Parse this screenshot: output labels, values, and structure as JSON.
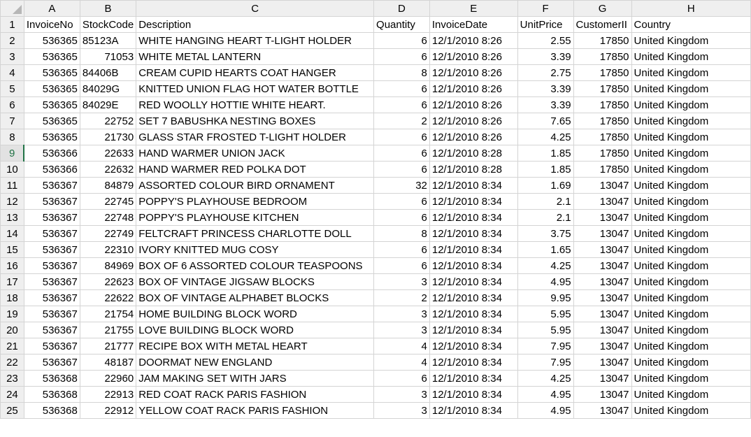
{
  "spreadsheet": {
    "active_row": "9",
    "column_letters": [
      "A",
      "B",
      "C",
      "D",
      "E",
      "F",
      "G",
      "H"
    ],
    "column_align": [
      "right",
      "right",
      "left",
      "right",
      "left",
      "right",
      "right",
      "left"
    ],
    "rows": [
      {
        "row": "1",
        "cells": [
          "InvoiceNo",
          "StockCode",
          "Description",
          "Quantity",
          "InvoiceDate",
          "UnitPrice",
          "CustomerII",
          "Country"
        ],
        "align": [
          "left",
          "left",
          "left",
          "left",
          "left",
          "left",
          "left",
          "left"
        ]
      },
      {
        "row": "2",
        "cells": [
          "536365",
          "85123A",
          "WHITE HANGING HEART T-LIGHT HOLDER",
          "6",
          "12/1/2010 8:26",
          "2.55",
          "17850",
          "United Kingdom"
        ],
        "align": [
          "right",
          "left",
          "left",
          "right",
          "left",
          "right",
          "right",
          "left"
        ]
      },
      {
        "row": "3",
        "cells": [
          "536365",
          "71053",
          "WHITE METAL LANTERN",
          "6",
          "12/1/2010 8:26",
          "3.39",
          "17850",
          "United Kingdom"
        ]
      },
      {
        "row": "4",
        "cells": [
          "536365",
          "84406B",
          "CREAM CUPID HEARTS COAT HANGER",
          "8",
          "12/1/2010 8:26",
          "2.75",
          "17850",
          "United Kingdom"
        ],
        "align": [
          "right",
          "left",
          "left",
          "right",
          "left",
          "right",
          "right",
          "left"
        ]
      },
      {
        "row": "5",
        "cells": [
          "536365",
          "84029G",
          "KNITTED UNION FLAG HOT WATER BOTTLE",
          "6",
          "12/1/2010 8:26",
          "3.39",
          "17850",
          "United Kingdom"
        ],
        "align": [
          "right",
          "left",
          "left",
          "right",
          "left",
          "right",
          "right",
          "left"
        ]
      },
      {
        "row": "6",
        "cells": [
          "536365",
          "84029E",
          "RED WOOLLY HOTTIE WHITE HEART.",
          "6",
          "12/1/2010 8:26",
          "3.39",
          "17850",
          "United Kingdom"
        ],
        "align": [
          "right",
          "left",
          "left",
          "right",
          "left",
          "right",
          "right",
          "left"
        ]
      },
      {
        "row": "7",
        "cells": [
          "536365",
          "22752",
          "SET 7 BABUSHKA NESTING BOXES",
          "2",
          "12/1/2010 8:26",
          "7.65",
          "17850",
          "United Kingdom"
        ]
      },
      {
        "row": "8",
        "cells": [
          "536365",
          "21730",
          "GLASS STAR FROSTED T-LIGHT HOLDER",
          "6",
          "12/1/2010 8:26",
          "4.25",
          "17850",
          "United Kingdom"
        ]
      },
      {
        "row": "9",
        "cells": [
          "536366",
          "22633",
          "HAND WARMER UNION JACK",
          "6",
          "12/1/2010 8:28",
          "1.85",
          "17850",
          "United Kingdom"
        ]
      },
      {
        "row": "10",
        "cells": [
          "536366",
          "22632",
          "HAND WARMER RED POLKA DOT",
          "6",
          "12/1/2010 8:28",
          "1.85",
          "17850",
          "United Kingdom"
        ]
      },
      {
        "row": "11",
        "cells": [
          "536367",
          "84879",
          "ASSORTED COLOUR BIRD ORNAMENT",
          "32",
          "12/1/2010 8:34",
          "1.69",
          "13047",
          "United Kingdom"
        ]
      },
      {
        "row": "12",
        "cells": [
          "536367",
          "22745",
          "POPPY'S PLAYHOUSE BEDROOM",
          "6",
          "12/1/2010 8:34",
          "2.1",
          "13047",
          "United Kingdom"
        ]
      },
      {
        "row": "13",
        "cells": [
          "536367",
          "22748",
          "POPPY'S PLAYHOUSE KITCHEN",
          "6",
          "12/1/2010 8:34",
          "2.1",
          "13047",
          "United Kingdom"
        ]
      },
      {
        "row": "14",
        "cells": [
          "536367",
          "22749",
          "FELTCRAFT PRINCESS CHARLOTTE DOLL",
          "8",
          "12/1/2010 8:34",
          "3.75",
          "13047",
          "United Kingdom"
        ]
      },
      {
        "row": "15",
        "cells": [
          "536367",
          "22310",
          "IVORY KNITTED MUG COSY",
          "6",
          "12/1/2010 8:34",
          "1.65",
          "13047",
          "United Kingdom"
        ]
      },
      {
        "row": "16",
        "cells": [
          "536367",
          "84969",
          "BOX OF 6 ASSORTED COLOUR TEASPOONS",
          "6",
          "12/1/2010 8:34",
          "4.25",
          "13047",
          "United Kingdom"
        ]
      },
      {
        "row": "17",
        "cells": [
          "536367",
          "22623",
          "BOX OF VINTAGE JIGSAW BLOCKS",
          "3",
          "12/1/2010 8:34",
          "4.95",
          "13047",
          "United Kingdom"
        ]
      },
      {
        "row": "18",
        "cells": [
          "536367",
          "22622",
          "BOX OF VINTAGE ALPHABET BLOCKS",
          "2",
          "12/1/2010 8:34",
          "9.95",
          "13047",
          "United Kingdom"
        ]
      },
      {
        "row": "19",
        "cells": [
          "536367",
          "21754",
          "HOME BUILDING BLOCK WORD",
          "3",
          "12/1/2010 8:34",
          "5.95",
          "13047",
          "United Kingdom"
        ]
      },
      {
        "row": "20",
        "cells": [
          "536367",
          "21755",
          "LOVE BUILDING BLOCK WORD",
          "3",
          "12/1/2010 8:34",
          "5.95",
          "13047",
          "United Kingdom"
        ]
      },
      {
        "row": "21",
        "cells": [
          "536367",
          "21777",
          "RECIPE BOX WITH METAL HEART",
          "4",
          "12/1/2010 8:34",
          "7.95",
          "13047",
          "United Kingdom"
        ]
      },
      {
        "row": "22",
        "cells": [
          "536367",
          "48187",
          "DOORMAT NEW ENGLAND",
          "4",
          "12/1/2010 8:34",
          "7.95",
          "13047",
          "United Kingdom"
        ]
      },
      {
        "row": "23",
        "cells": [
          "536368",
          "22960",
          "JAM MAKING SET WITH JARS",
          "6",
          "12/1/2010 8:34",
          "4.25",
          "13047",
          "United Kingdom"
        ]
      },
      {
        "row": "24",
        "cells": [
          "536368",
          "22913",
          "RED COAT RACK PARIS FASHION",
          "3",
          "12/1/2010 8:34",
          "4.95",
          "13047",
          "United Kingdom"
        ]
      },
      {
        "row": "25",
        "cells": [
          "536368",
          "22912",
          "YELLOW COAT RACK PARIS FASHION",
          "3",
          "12/1/2010 8:34",
          "4.95",
          "13047",
          "United Kingdom"
        ]
      }
    ]
  }
}
